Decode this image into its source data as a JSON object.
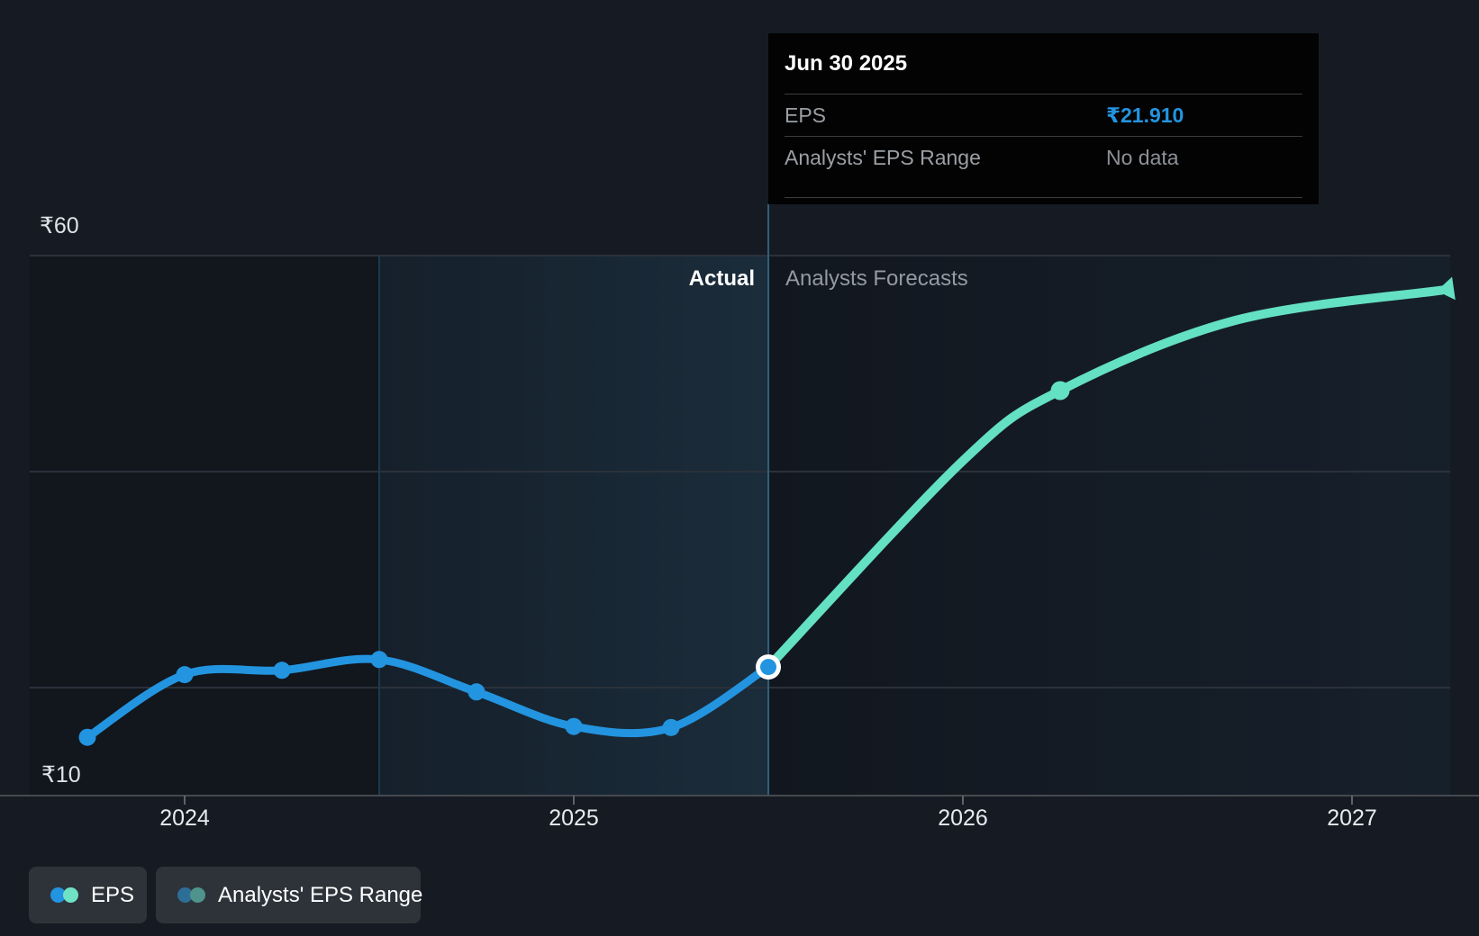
{
  "page": {
    "background": "#161B23"
  },
  "y_axis": {
    "top": "₹60",
    "bottom": "₹10"
  },
  "x_axis": {
    "years": [
      "2024",
      "2025",
      "2026",
      "2027"
    ]
  },
  "zones": {
    "actual": "Actual",
    "forecast": "Analysts Forecasts"
  },
  "tooltip": {
    "date": "Jun 30 2025",
    "rows": [
      {
        "label": "EPS",
        "value": "₹21.910",
        "color": "#2394DF"
      },
      {
        "label": "Analysts' EPS Range",
        "value": "No data",
        "color": "#8D9196"
      }
    ]
  },
  "legend": [
    {
      "label": "EPS",
      "colors": [
        "#2394DF",
        "#6FE2C6"
      ]
    },
    {
      "label": "Analysts' EPS Range",
      "colors": [
        "#2D6E97",
        "#4F948C"
      ]
    }
  ],
  "chart_data": {
    "type": "line",
    "title": "EPS actual vs analysts forecast",
    "currency": "₹",
    "ylim": [
      10,
      62
    ],
    "y_gridlines": [
      60,
      40,
      20
    ],
    "y_axis_baseline": 10,
    "x_ticks": [
      2024,
      2025,
      2026,
      2027
    ],
    "highlight_window": {
      "from": 2024.5,
      "to": 2025.5
    },
    "series": [
      {
        "name": "EPS",
        "kind": "actual",
        "color": "#2394DF",
        "points": [
          {
            "date": "Sep 30 2023",
            "t": 2023.75,
            "value": 15.4
          },
          {
            "date": "Dec 31 2023",
            "t": 2024.0,
            "value": 21.2
          },
          {
            "date": "Mar 31 2024",
            "t": 2024.25,
            "value": 21.6
          },
          {
            "date": "Jun 30 2024",
            "t": 2024.5,
            "value": 22.6
          },
          {
            "date": "Sep 30 2024",
            "t": 2024.75,
            "value": 19.6
          },
          {
            "date": "Dec 31 2024",
            "t": 2025.0,
            "value": 16.4
          },
          {
            "date": "Mar 31 2025",
            "t": 2025.25,
            "value": 16.3
          },
          {
            "date": "Jun 30 2025",
            "t": 2025.5,
            "value": 21.91,
            "highlighted": true
          }
        ]
      },
      {
        "name": "EPS analysts forecast",
        "kind": "forecast",
        "color": "#64E0C3",
        "points": [
          {
            "date": "Jun 30 2025",
            "t": 2025.5,
            "value": 21.91,
            "marker": false
          },
          {
            "t": 2026.0,
            "value": 41.0,
            "marker": false,
            "interpolated": true
          },
          {
            "date": "Mar 31 2026",
            "t": 2026.25,
            "value": 47.5,
            "marker": true
          },
          {
            "t": 2026.7,
            "value": 54.0,
            "marker": false,
            "interpolated": true
          },
          {
            "t": 2027.25,
            "value": 56.9,
            "marker": false,
            "interpolated": true,
            "arrow_end": true
          }
        ]
      }
    ]
  }
}
